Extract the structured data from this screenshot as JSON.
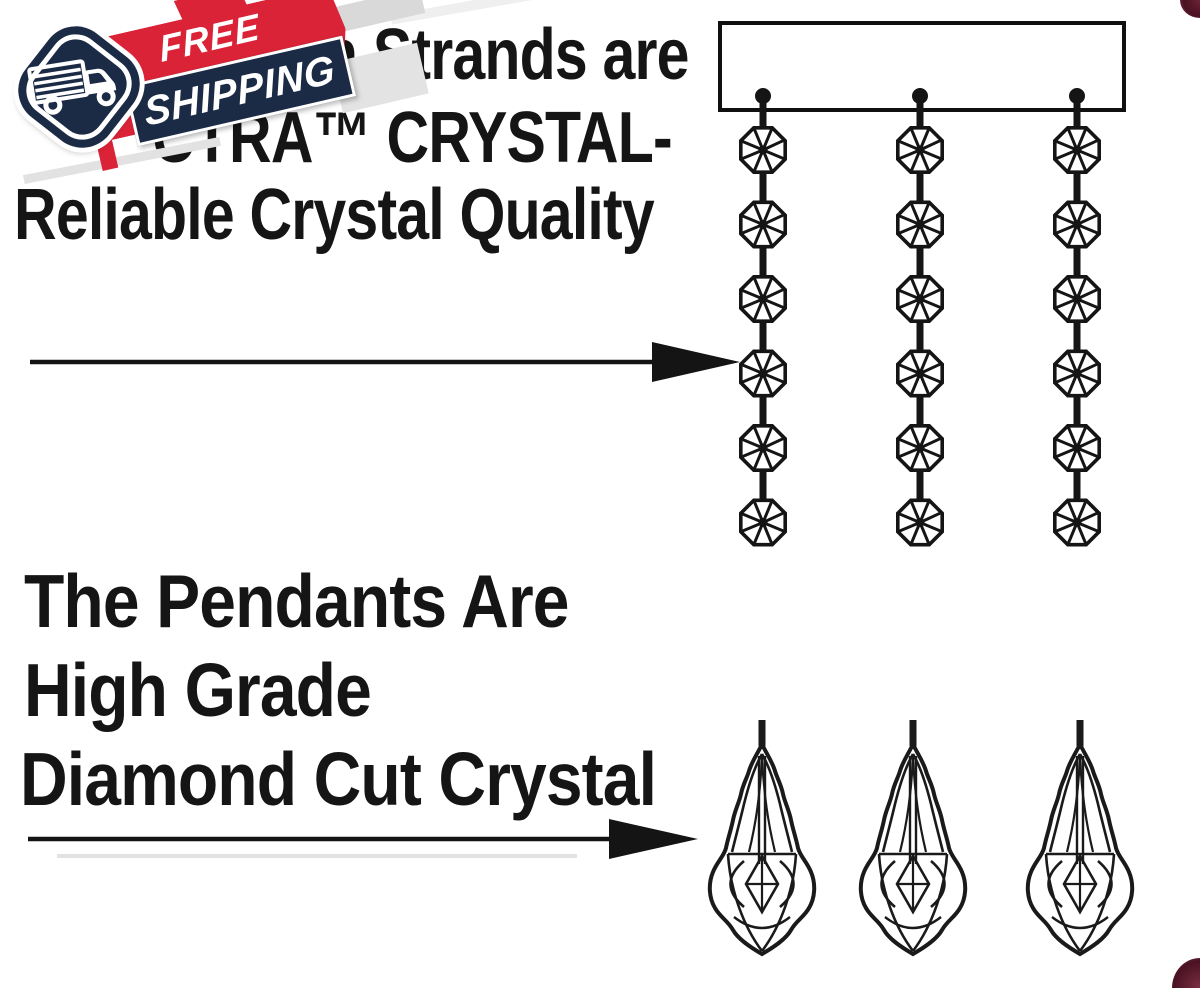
{
  "badge": {
    "free_label": "FREE",
    "shipping_label": "SHIPPING",
    "truck_icon": "delivery-truck-icon"
  },
  "headline_top": {
    "line1": "n Strands are",
    "line2": "CTRA™ CRYSTAL-",
    "line3": "Reliable Crystal Quality"
  },
  "headline_bottom": {
    "line1": "The Pendants Are",
    "line2": "High Grade",
    "line3": "Diamond Cut Crystal"
  },
  "diagram": {
    "strand_count": 3,
    "beads_per_strand": 6,
    "pendant_count": 3
  },
  "colors": {
    "text": "#151515",
    "badge_navy": "#1b2b45",
    "badge_red": "#da2337",
    "diagram_ink": "#151515",
    "corner_maroon": "#4a1122"
  }
}
